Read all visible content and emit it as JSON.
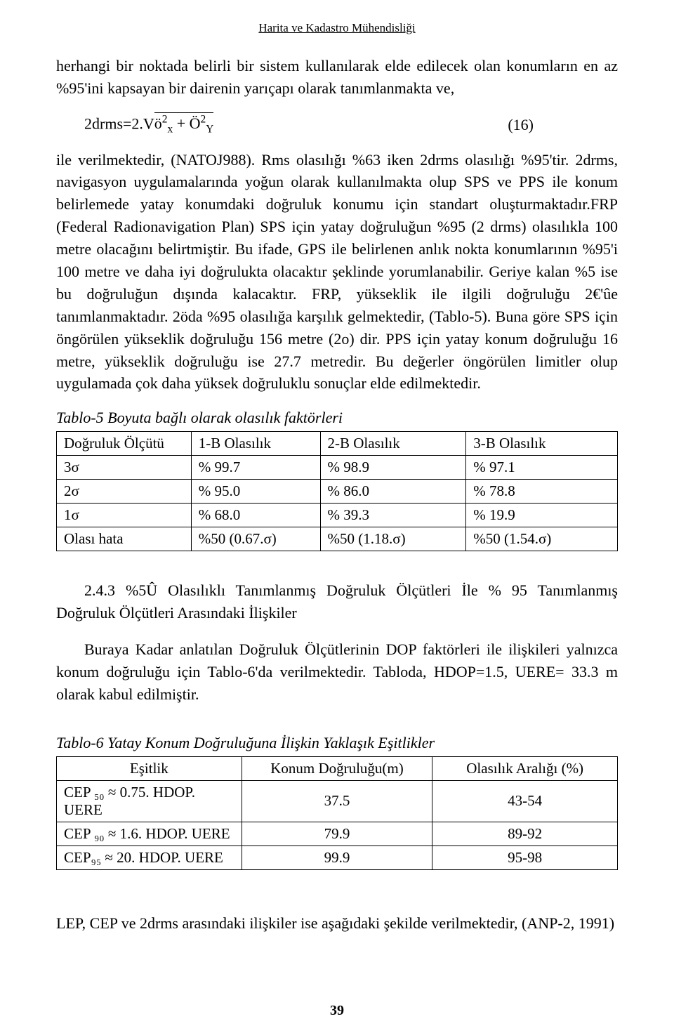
{
  "header": "Harita ve Kadastro Mühendisliği",
  "para1": "herhangi bir noktada belirli bir sistem kullanılarak elde edilecek olan konumların en az %95'ini kapsayan bir dairenin yarıçapı olarak tanımlanmakta ve,",
  "formula": {
    "lhs": "2drms=2.V",
    "rhs_html": "ö²ₓ + Ö²_Y",
    "num": "(16)"
  },
  "para2": "ile verilmektedir, (NATOJ988). Rms olasılığı %63 iken 2drms olasılığı %95'tir. 2drms, navigasyon uygulamalarında yoğun olarak kullanılmakta olup SPS ve PPS ile konum belirlemede yatay konumdaki doğruluk konumu için standart oluşturmaktadır.FRP (Federal Radionavigation Plan) SPS için yatay doğruluğun %95 (2 drms) olasılıkla 100 metre olacağını belirtmiştir. Bu ifade, GPS ile belirlenen anlık nokta konumlarının %95'i 100 metre ve daha iyi doğrulukta olacaktır şeklinde yorumlanabilir. Geriye kalan %5 ise bu doğruluğun dışında kalacaktır. FRP, yükseklik ile ilgili doğruluğu 2€'ûe tanımlanmaktadır. 2öda %95 olasılığa karşılık gelmektedir, (Tablo-5). Buna göre SPS için öngörülen yükseklik doğruluğu 156 metre (2o) dir. PPS için yatay konum doğruluğu 16 metre, yükseklik doğruluğu ise 27.7 metredir. Bu değerler öngörülen limitler olup uygulamada çok daha yüksek doğruluklu sonuçlar elde edilmektedir.",
  "table5": {
    "caption": "Tablo-5 Boyuta bağlı olarak olasılık faktörleri",
    "columns": [
      "Doğruluk Ölçütü",
      "1-B Olasılık",
      "2-B Olasılık",
      "3-B Olasılık"
    ],
    "rows": [
      [
        "3σ",
        "% 99.7",
        "% 98.9",
        "% 97.1"
      ],
      [
        "2σ",
        "% 95.0",
        "% 86.0",
        "% 78.8"
      ],
      [
        "1σ",
        "% 68.0",
        "% 39.3",
        "% 19.9"
      ],
      [
        "Olası hata",
        "%50 (0.67.σ)",
        "%50 (1.18.σ)",
        "%50 (1.54.σ)"
      ]
    ]
  },
  "section243": "2.4.3 %5Û Olasılıklı Tanımlanmış Doğruluk Ölçütleri İle % 95 Tanımlanmış Doğruluk Ölçütleri Arasındaki İlişkiler",
  "para3": "Buraya Kadar anlatılan Doğruluk Ölçütlerinin DOP faktörleri ile ilişkileri yalnızca konum doğruluğu için Tablo-6'da verilmektedir. Tabloda, HDOP=1.5, UERE= 33.3 m olarak kabul edilmiştir.",
  "table6": {
    "caption": "Tablo-6 Yatay Konum Doğruluğuna İlişkin  Yaklaşık Eşitlikler",
    "columns": [
      "Eşitlik",
      "Konum Doğruluğu(m)",
      "Olasılık Aralığı (%)"
    ],
    "rows": [
      [
        "CEP ₅₀ ≈ 0.75.  HDOP. UERE",
        "37.5",
        "43-54"
      ],
      [
        "CEP ₉₀ ≈ 1.6.   HDOP. UERE",
        "79.9",
        "89-92"
      ],
      [
        "CEP₉₅ ≈  20.   HDOP. UERE",
        "99.9",
        "95-98"
      ]
    ]
  },
  "para4": "LEP, CEP ve 2drms arasındaki ilişkiler ise aşağıdaki şekilde verilmektedir, (ANP-2, 1991)",
  "page_number": "39"
}
